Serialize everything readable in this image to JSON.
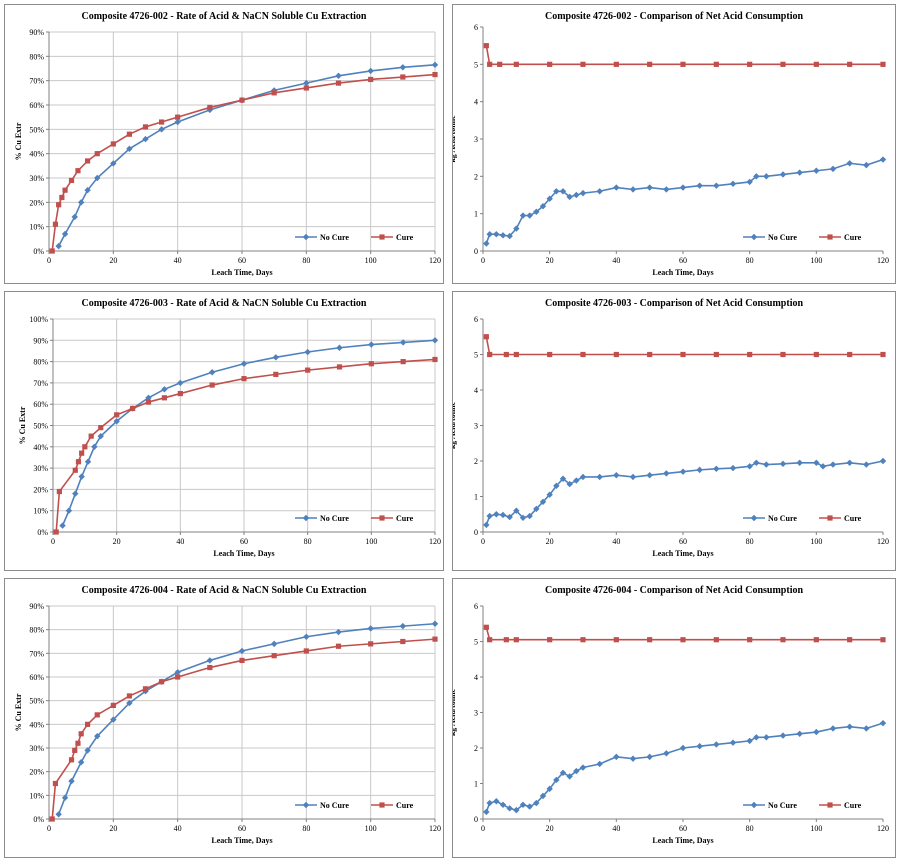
{
  "colors": {
    "no_cure": "#4f81bd",
    "cure": "#c0504d",
    "grid": "#c8c8c8",
    "axis": "#808080"
  },
  "chart_data": [
    {
      "type": "line",
      "title": "Composite 4726-002 - Rate of Acid & NaCN Soluble Cu Extraction",
      "xlabel": "Leach Time, Days",
      "ylabel": "% Cu Extr",
      "xlim": [
        0,
        120
      ],
      "ylim": [
        0,
        90
      ],
      "xticks": [
        0,
        20,
        40,
        60,
        80,
        100,
        120
      ],
      "xtick_labels": [
        "0",
        "20",
        "40",
        "60",
        "80",
        "100",
        "120"
      ],
      "yticks": [
        0,
        10,
        20,
        30,
        40,
        50,
        60,
        70,
        80,
        90
      ],
      "ytick_labels": [
        "0%",
        "10%",
        "20%",
        "30%",
        "40%",
        "50%",
        "60%",
        "70%",
        "80%",
        "90%"
      ],
      "grid": "vertical and horizontal",
      "legend": "bottom-right",
      "series": [
        {
          "name": "No Cure",
          "color": "#4f81bd",
          "marker": "diamond",
          "x": [
            3,
            5,
            8,
            10,
            12,
            15,
            20,
            25,
            30,
            35,
            40,
            50,
            60,
            70,
            80,
            90,
            100,
            110,
            120
          ],
          "y": [
            2,
            7,
            14,
            20,
            25,
            30,
            36,
            42,
            46,
            50,
            53,
            58,
            62,
            66,
            69,
            72,
            74,
            75.5,
            76.5
          ]
        },
        {
          "name": "Cure",
          "color": "#c0504d",
          "marker": "square",
          "x": [
            1,
            2,
            3,
            4,
            5,
            7,
            9,
            12,
            15,
            20,
            25,
            30,
            35,
            40,
            50,
            60,
            70,
            80,
            90,
            100,
            110,
            120
          ],
          "y": [
            0,
            11,
            19,
            22,
            25,
            29,
            33,
            37,
            40,
            44,
            48,
            51,
            53,
            55,
            59,
            62,
            65,
            67,
            69,
            70.5,
            71.5,
            72.5
          ]
        }
      ]
    },
    {
      "type": "line",
      "title": "Composite 4726-002 - Comparison of Net Acid Consumption",
      "xlabel": "Leach Time, Days",
      "ylabel": "kg Acid/tonne",
      "xlim": [
        0,
        120
      ],
      "ylim": [
        0,
        6
      ],
      "xticks": [
        0,
        20,
        40,
        60,
        80,
        100,
        120
      ],
      "xtick_labels": [
        "0",
        "20",
        "40",
        "60",
        "80",
        "100",
        "120"
      ],
      "yticks": [
        0,
        1,
        2,
        3,
        4,
        5,
        6
      ],
      "ytick_labels": [
        "0",
        "1",
        "2",
        "3",
        "4",
        "5",
        "6"
      ],
      "grid": "none",
      "legend": "bottom-right",
      "series": [
        {
          "name": "No Cure",
          "color": "#4f81bd",
          "marker": "diamond",
          "x": [
            1,
            2,
            4,
            6,
            8,
            10,
            12,
            14,
            16,
            18,
            20,
            22,
            24,
            26,
            28,
            30,
            35,
            40,
            45,
            50,
            55,
            60,
            65,
            70,
            75,
            80,
            82,
            85,
            90,
            95,
            100,
            105,
            110,
            115,
            120
          ],
          "y": [
            0.2,
            0.45,
            0.45,
            0.42,
            0.4,
            0.6,
            0.95,
            0.95,
            1.05,
            1.2,
            1.4,
            1.6,
            1.6,
            1.45,
            1.5,
            1.55,
            1.6,
            1.7,
            1.65,
            1.7,
            1.65,
            1.7,
            1.75,
            1.75,
            1.8,
            1.85,
            2.0,
            2.0,
            2.05,
            2.1,
            2.15,
            2.2,
            2.35,
            2.3,
            2.45
          ]
        },
        {
          "name": "Cure",
          "color": "#c0504d",
          "marker": "square",
          "x": [
            1,
            2,
            5,
            10,
            20,
            30,
            40,
            50,
            60,
            70,
            80,
            90,
            100,
            110,
            120
          ],
          "y": [
            5.5,
            5.0,
            5.0,
            5.0,
            5.0,
            5.0,
            5.0,
            5.0,
            5.0,
            5.0,
            5.0,
            5.0,
            5.0,
            5.0,
            5.0
          ]
        }
      ]
    },
    {
      "type": "line",
      "title": "Composite 4726-003 - Rate of Acid & NaCN Soluble Cu Extraction",
      "xlabel": "Leach Time, Days",
      "ylabel": "% Cu Extr",
      "xlim": [
        0,
        120
      ],
      "ylim": [
        0,
        100
      ],
      "xticks": [
        0,
        20,
        40,
        60,
        80,
        100,
        120
      ],
      "xtick_labels": [
        "0",
        "20",
        "40",
        "60",
        "80",
        "100",
        "120"
      ],
      "yticks": [
        0,
        10,
        20,
        30,
        40,
        50,
        60,
        70,
        80,
        90,
        100
      ],
      "ytick_labels": [
        "0%",
        "10%",
        "20%",
        "30%",
        "40%",
        "50%",
        "60%",
        "70%",
        "80%",
        "90%",
        "100%"
      ],
      "grid": "vertical and horizontal",
      "legend": "bottom-right",
      "series": [
        {
          "name": "No Cure",
          "color": "#4f81bd",
          "marker": "diamond",
          "x": [
            3,
            5,
            7,
            9,
            11,
            13,
            15,
            20,
            25,
            30,
            35,
            40,
            50,
            60,
            70,
            80,
            90,
            100,
            110,
            120
          ],
          "y": [
            3,
            10,
            18,
            26,
            33,
            40,
            45,
            52,
            58,
            63,
            67,
            70,
            75,
            79,
            82,
            84.5,
            86.5,
            88,
            89,
            90
          ]
        },
        {
          "name": "Cure",
          "color": "#c0504d",
          "marker": "square",
          "x": [
            1,
            2,
            7,
            8,
            9,
            10,
            12,
            15,
            20,
            25,
            30,
            35,
            40,
            50,
            60,
            70,
            80,
            90,
            100,
            110,
            120
          ],
          "y": [
            0,
            19,
            29,
            33,
            37,
            40,
            45,
            49,
            55,
            58,
            61,
            63,
            65,
            69,
            72,
            74,
            76,
            77.5,
            79,
            80,
            81
          ]
        }
      ]
    },
    {
      "type": "line",
      "title": "Composite 4726-003 - Comparison of Net Acid Consumption",
      "xlabel": "Leach Time, Days",
      "ylabel": "kg Acid/tonne",
      "xlim": [
        0,
        120
      ],
      "ylim": [
        0,
        6
      ],
      "xticks": [
        0,
        20,
        40,
        60,
        80,
        100,
        120
      ],
      "xtick_labels": [
        "0",
        "20",
        "40",
        "60",
        "80",
        "100",
        "120"
      ],
      "yticks": [
        0,
        1,
        2,
        3,
        4,
        5,
        6
      ],
      "ytick_labels": [
        "0",
        "1",
        "2",
        "3",
        "4",
        "5",
        "6"
      ],
      "grid": "none",
      "legend": "bottom-right",
      "series": [
        {
          "name": "No Cure",
          "color": "#4f81bd",
          "marker": "diamond",
          "x": [
            1,
            2,
            4,
            6,
            8,
            10,
            12,
            14,
            16,
            18,
            20,
            22,
            24,
            26,
            28,
            30,
            35,
            40,
            45,
            50,
            55,
            60,
            65,
            70,
            75,
            80,
            82,
            85,
            90,
            95,
            100,
            102,
            105,
            110,
            115,
            120
          ],
          "y": [
            0.2,
            0.45,
            0.5,
            0.48,
            0.42,
            0.6,
            0.4,
            0.45,
            0.65,
            0.85,
            1.05,
            1.3,
            1.5,
            1.35,
            1.45,
            1.55,
            1.55,
            1.6,
            1.55,
            1.6,
            1.65,
            1.7,
            1.75,
            1.78,
            1.8,
            1.85,
            1.95,
            1.9,
            1.92,
            1.95,
            1.95,
            1.85,
            1.9,
            1.95,
            1.9,
            2.0
          ]
        },
        {
          "name": "Cure",
          "color": "#c0504d",
          "marker": "square",
          "x": [
            1,
            2,
            7,
            10,
            20,
            30,
            40,
            50,
            60,
            70,
            80,
            90,
            100,
            110,
            120
          ],
          "y": [
            5.5,
            5.0,
            5.0,
            5.0,
            5.0,
            5.0,
            5.0,
            5.0,
            5.0,
            5.0,
            5.0,
            5.0,
            5.0,
            5.0,
            5.0
          ]
        }
      ]
    },
    {
      "type": "line",
      "title": "Composite 4726-004 - Rate of Acid & NaCN Soluble Cu Extraction",
      "xlabel": "Leach Time, Days",
      "ylabel": "% Cu Extr",
      "xlim": [
        0,
        120
      ],
      "ylim": [
        0,
        90
      ],
      "xticks": [
        0,
        20,
        40,
        60,
        80,
        100,
        120
      ],
      "xtick_labels": [
        "0",
        "20",
        "40",
        "60",
        "80",
        "100",
        "120"
      ],
      "yticks": [
        0,
        10,
        20,
        30,
        40,
        50,
        60,
        70,
        80,
        90
      ],
      "ytick_labels": [
        "0%",
        "10%",
        "20%",
        "30%",
        "40%",
        "50%",
        "60%",
        "70%",
        "80%",
        "90%"
      ],
      "grid": "vertical and horizontal",
      "legend": "bottom-right",
      "series": [
        {
          "name": "No Cure",
          "color": "#4f81bd",
          "marker": "diamond",
          "x": [
            3,
            5,
            7,
            10,
            12,
            15,
            20,
            25,
            30,
            35,
            40,
            50,
            60,
            70,
            80,
            90,
            100,
            110,
            120
          ],
          "y": [
            2,
            9,
            16,
            24,
            29,
            35,
            42,
            49,
            54,
            58,
            62,
            67,
            71,
            74,
            77,
            79,
            80.5,
            81.5,
            82.5
          ]
        },
        {
          "name": "Cure",
          "color": "#c0504d",
          "marker": "square",
          "x": [
            1,
            2,
            7,
            8,
            9,
            10,
            12,
            15,
            20,
            25,
            30,
            35,
            40,
            50,
            60,
            70,
            80,
            90,
            100,
            110,
            120
          ],
          "y": [
            0,
            15,
            25,
            29,
            32,
            36,
            40,
            44,
            48,
            52,
            55,
            58,
            60,
            64,
            67,
            69,
            71,
            73,
            74,
            75,
            76
          ]
        }
      ]
    },
    {
      "type": "line",
      "title": "Composite 4726-004 - Comparison of Net Acid Consumption",
      "xlabel": "Leach Time, Days",
      "ylabel": "kg Acid/tonne",
      "xlim": [
        0,
        120
      ],
      "ylim": [
        0,
        6
      ],
      "xticks": [
        0,
        20,
        40,
        60,
        80,
        100,
        120
      ],
      "xtick_labels": [
        "0",
        "20",
        "40",
        "60",
        "80",
        "100",
        "120"
      ],
      "yticks": [
        0,
        1,
        2,
        3,
        4,
        5,
        6
      ],
      "ytick_labels": [
        "0",
        "1",
        "2",
        "3",
        "4",
        "5",
        "6"
      ],
      "grid": "none",
      "legend": "bottom-right",
      "series": [
        {
          "name": "No Cure",
          "color": "#4f81bd",
          "marker": "diamond",
          "x": [
            1,
            2,
            4,
            6,
            8,
            10,
            12,
            14,
            16,
            18,
            20,
            22,
            24,
            26,
            28,
            30,
            35,
            40,
            45,
            50,
            55,
            60,
            65,
            70,
            75,
            80,
            82,
            85,
            90,
            95,
            100,
            105,
            110,
            115,
            120
          ],
          "y": [
            0.2,
            0.45,
            0.5,
            0.4,
            0.3,
            0.25,
            0.4,
            0.35,
            0.45,
            0.65,
            0.85,
            1.1,
            1.3,
            1.2,
            1.35,
            1.45,
            1.55,
            1.75,
            1.7,
            1.75,
            1.85,
            2.0,
            2.05,
            2.1,
            2.15,
            2.2,
            2.3,
            2.3,
            2.35,
            2.4,
            2.45,
            2.55,
            2.6,
            2.55,
            2.7
          ]
        },
        {
          "name": "Cure",
          "color": "#c0504d",
          "marker": "square",
          "x": [
            1,
            2,
            7,
            10,
            20,
            30,
            40,
            50,
            60,
            70,
            80,
            90,
            100,
            110,
            120
          ],
          "y": [
            5.4,
            5.05,
            5.05,
            5.05,
            5.05,
            5.05,
            5.05,
            5.05,
            5.05,
            5.05,
            5.05,
            5.05,
            5.05,
            5.05,
            5.05
          ]
        }
      ]
    }
  ]
}
